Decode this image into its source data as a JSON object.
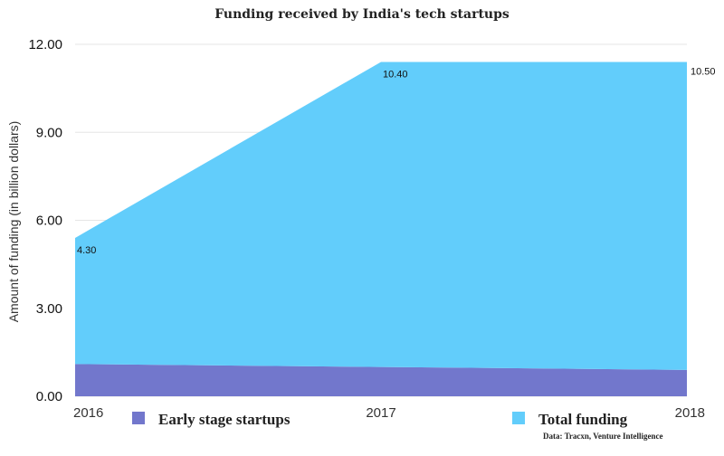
{
  "chart_data": {
    "type": "area",
    "stacked": true,
    "title": "Funding received by India's tech startups",
    "xlabel": "",
    "ylabel": "Amount of funding (in billion dollars)",
    "categories": [
      "2016",
      "2017",
      "2018"
    ],
    "series": [
      {
        "name": "Early stage startups",
        "color": "#7277cc",
        "values": [
          1.1,
          1.0,
          0.9
        ]
      },
      {
        "name": "Total funding",
        "color": "#62cdfb",
        "values": [
          4.3,
          10.4,
          10.5
        ]
      }
    ],
    "data_labels": [
      "4.30",
      "10.40",
      "10.50"
    ],
    "yticks": [
      "0.00",
      "3.00",
      "6.00",
      "9.00",
      "12.00"
    ],
    "ylim": [
      0,
      12
    ],
    "grid": true,
    "legend_position": "bottom",
    "source": "Data: Tracxn, Venture Intelligence"
  },
  "colors": {
    "early": "#7277cc",
    "total": "#62cdfb",
    "grid": "#e6e6e6"
  }
}
